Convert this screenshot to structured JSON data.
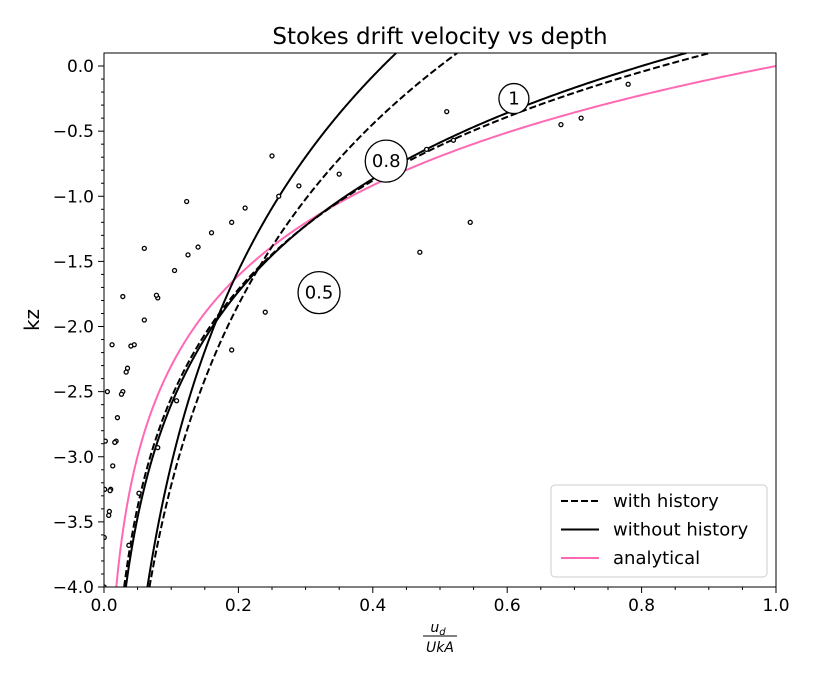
{
  "chart_data": {
    "type": "line",
    "title": "Stokes drift velocity vs depth",
    "xlabel": {
      "numerator": "u",
      "numerator_sub": "d",
      "denominator": "UkA"
    },
    "ylabel": "kz",
    "xlim": [
      0.0,
      1.0
    ],
    "ylim": [
      -4.0,
      0.1
    ],
    "xticks": [
      "0.0",
      "0.2",
      "0.4",
      "0.6",
      "0.8",
      "1.0"
    ],
    "yticks": [
      "0.0",
      "−0.5",
      "−1.0",
      "−1.5",
      "−2.0",
      "−2.5",
      "−3.0",
      "−3.5",
      "−4.0"
    ],
    "xtick_values": [
      0.0,
      0.2,
      0.4,
      0.6,
      0.8,
      1.0
    ],
    "ytick_values": [
      0.0,
      -0.5,
      -1.0,
      -1.5,
      -2.0,
      -2.5,
      -3.0,
      -3.5,
      -4.0
    ],
    "grid": false,
    "legend_position": "bottom-right",
    "legend": [
      {
        "label": "with history",
        "color": "#000000",
        "style": "dashed"
      },
      {
        "label": "without history",
        "color": "#000000",
        "style": "solid"
      },
      {
        "label": "analytical",
        "color": "#ff69b4",
        "style": "solid"
      }
    ],
    "callouts": [
      {
        "text": "1",
        "x": 0.61,
        "y": -0.25,
        "size": "small"
      },
      {
        "text": "0.8",
        "x": 0.42,
        "y": -0.73,
        "size": "large"
      },
      {
        "text": "0.5",
        "x": 0.32,
        "y": -1.74,
        "size": "large"
      }
    ],
    "series": [
      {
        "name": "analytical",
        "group": "1",
        "color": "#ff69b4",
        "style": "solid",
        "model": "exp",
        "a": 1.0,
        "b": 1.0
      },
      {
        "name": "with history",
        "group": "0.8",
        "color": "#000000",
        "style": "dashed",
        "model": "exp",
        "a": 0.83,
        "b": 0.83
      },
      {
        "name": "without history",
        "group": "0.8",
        "color": "#000000",
        "style": "solid",
        "model": "exp",
        "a": 0.8,
        "b": 0.8
      },
      {
        "name": "with history",
        "group": "0.5",
        "color": "#000000",
        "style": "dashed",
        "model": "exp",
        "a": 0.5,
        "b": 0.5
      },
      {
        "name": "without history",
        "group": "0.5",
        "color": "#000000",
        "style": "solid",
        "model": "exp",
        "a": 0.415,
        "b": 0.465
      }
    ],
    "markers": [
      {
        "group": "1",
        "points": [
          [
            0.78,
            -0.14
          ],
          [
            0.51,
            -0.35
          ],
          [
            0.25,
            -0.69
          ],
          [
            0.123,
            -1.04
          ],
          [
            0.06,
            -1.4
          ],
          [
            0.028,
            -1.77
          ],
          [
            0.012,
            -2.14
          ],
          [
            0.005,
            -2.5
          ],
          [
            0.002,
            -2.88
          ],
          [
            0.001,
            -3.25
          ],
          [
            0.0004,
            -3.62
          ],
          [
            0.0002,
            -4.0
          ]
        ]
      },
      {
        "group": "0.8",
        "points": [
          [
            0.71,
            -0.4
          ],
          [
            0.68,
            -0.45
          ],
          [
            0.52,
            -0.57
          ],
          [
            0.48,
            -0.64
          ],
          [
            0.35,
            -0.83
          ],
          [
            0.29,
            -0.92
          ],
          [
            0.26,
            -1.0
          ],
          [
            0.21,
            -1.09
          ],
          [
            0.19,
            -1.2
          ],
          [
            0.16,
            -1.28
          ],
          [
            0.14,
            -1.39
          ],
          [
            0.125,
            -1.45
          ],
          [
            0.105,
            -1.57
          ],
          [
            0.08,
            -1.78
          ],
          [
            0.078,
            -1.76
          ],
          [
            0.06,
            -1.95
          ],
          [
            0.045,
            -2.14
          ],
          [
            0.04,
            -2.15
          ],
          [
            0.035,
            -2.32
          ],
          [
            0.033,
            -2.35
          ],
          [
            0.028,
            -2.5
          ],
          [
            0.026,
            -2.52
          ],
          [
            0.02,
            -2.7
          ],
          [
            0.018,
            -2.88
          ],
          [
            0.016,
            -2.89
          ],
          [
            0.013,
            -3.07
          ],
          [
            0.01,
            -3.25
          ],
          [
            0.009,
            -3.26
          ],
          [
            0.008,
            -3.42
          ],
          [
            0.007,
            -3.45
          ]
        ]
      },
      {
        "group": "0.5",
        "points": [
          [
            0.545,
            -1.2
          ],
          [
            0.47,
            -1.43
          ],
          [
            0.24,
            -1.89
          ],
          [
            0.19,
            -2.18
          ],
          [
            0.108,
            -2.57
          ],
          [
            0.08,
            -2.93
          ],
          [
            0.052,
            -3.28
          ],
          [
            0.037,
            -3.68
          ]
        ]
      }
    ]
  }
}
